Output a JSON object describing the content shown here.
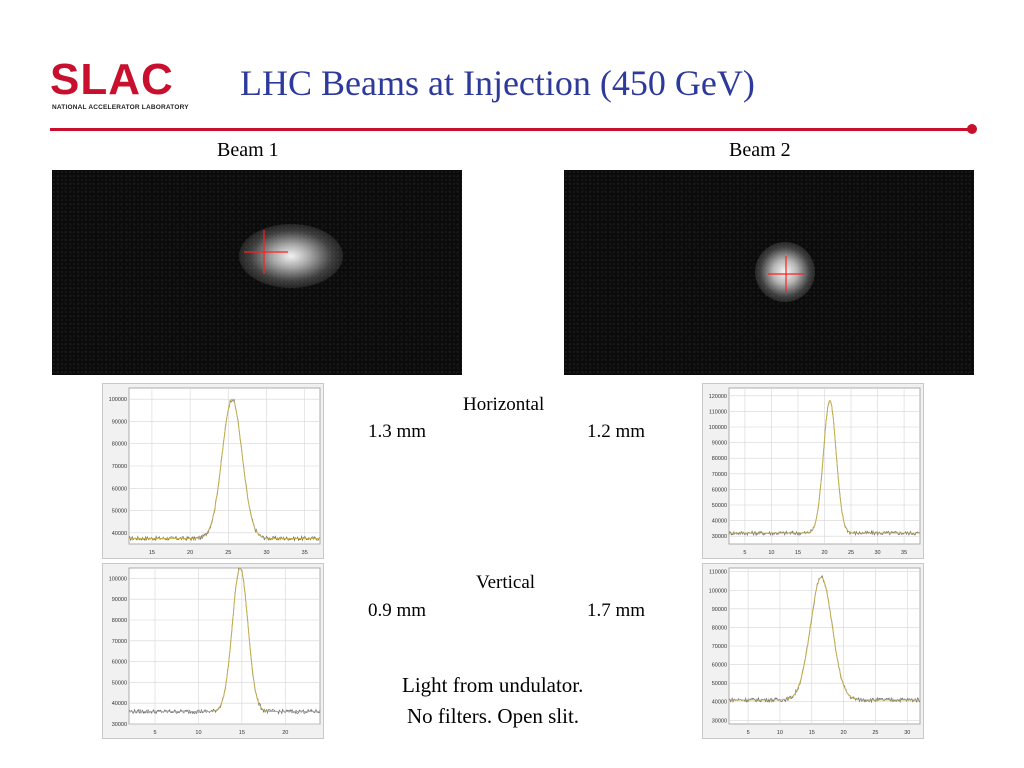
{
  "header": {
    "logo_text": "SLAC",
    "logo_subtext": "NATIONAL ACCELERATOR LABORATORY",
    "title": "LHC Beams at Injection (450 GeV)",
    "accent_color": "#c8102e",
    "title_color": "#2d3a9b"
  },
  "beams": {
    "beam1_label": "Beam 1",
    "beam2_label": "Beam 2"
  },
  "measurements": {
    "horizontal_label": "Horizontal",
    "horizontal_beam1": "1.3 mm",
    "horizontal_beam2": "1.2 mm",
    "vertical_label": "Vertical",
    "vertical_beam1": "0.9 mm",
    "vertical_beam2": "1.7 mm"
  },
  "notes": {
    "line1": "Light from undulator.",
    "line2": "No filters. Open slit."
  },
  "chart_data": [
    {
      "type": "line",
      "x_ticks": [
        15,
        20,
        25,
        30,
        35
      ],
      "y_ticks": [
        40000,
        50000,
        60000,
        70000,
        80000,
        90000,
        100000
      ],
      "xlim": [
        12,
        37
      ],
      "ylim": [
        35000,
        105000
      ],
      "baseline": 37500,
      "peak_x": 25.5,
      "peak_y": 100000,
      "sigma": 1.3
    },
    {
      "type": "line",
      "x_ticks": [
        5,
        10,
        15,
        20,
        25,
        30,
        35
      ],
      "y_ticks": [
        30000,
        40000,
        50000,
        60000,
        70000,
        80000,
        90000,
        100000,
        110000,
        120000
      ],
      "xlim": [
        2,
        38
      ],
      "ylim": [
        25000,
        125000
      ],
      "baseline": 32000,
      "peak_x": 21,
      "peak_y": 117000,
      "sigma": 1.2
    },
    {
      "type": "line",
      "x_ticks": [
        5,
        10,
        15,
        20
      ],
      "y_ticks": [
        30000,
        40000,
        50000,
        60000,
        70000,
        80000,
        90000,
        100000
      ],
      "xlim": [
        2,
        24
      ],
      "ylim": [
        30000,
        105000
      ],
      "baseline": 36000,
      "peak_x": 14.8,
      "peak_y": 105000,
      "sigma": 0.9
    },
    {
      "type": "line",
      "x_ticks": [
        5,
        10,
        15,
        20,
        25,
        30
      ],
      "y_ticks": [
        30000,
        40000,
        50000,
        60000,
        70000,
        80000,
        90000,
        100000,
        110000
      ],
      "xlim": [
        2,
        32
      ],
      "ylim": [
        28000,
        112000
      ],
      "baseline": 41000,
      "peak_x": 16.5,
      "peak_y": 107000,
      "sigma": 1.7
    }
  ]
}
